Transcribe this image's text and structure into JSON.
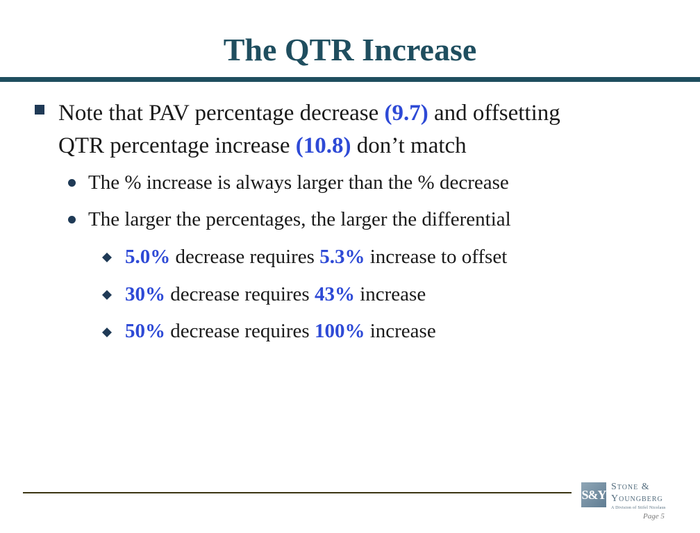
{
  "slide": {
    "title": "The QTR Increase"
  },
  "bullets": {
    "main": {
      "text_1": "Note that PAV percentage decrease ",
      "hl_1": "(9.7)",
      "text_2": " and offsetting",
      "text_3": "QTR percentage increase ",
      "hl_2": "(10.8)",
      "text_4": " don’t match"
    },
    "sub": [
      {
        "text": "The % increase is always larger than the % decrease"
      },
      {
        "text": "The larger the percentages, the larger the differential"
      }
    ],
    "examples": [
      {
        "dec": "5.0%",
        "mid": " decrease requires ",
        "inc": "5.3%",
        "tail": " increase to offset"
      },
      {
        "dec": "30%",
        "mid": " decrease requires ",
        "inc": "43%",
        "tail": " increase"
      },
      {
        "dec": "50%",
        "mid": " decrease requires ",
        "inc": "100%",
        "tail": " increase"
      }
    ]
  },
  "footer": {
    "logo_mark": "S&Y",
    "logo_line1": "Stone &",
    "logo_line2": "Youngberg",
    "logo_sub": "A Division of Stifel Nicolaus",
    "page": "Page 5"
  },
  "colors": {
    "title": "#1f4e5f",
    "highlight": "#2e4ad6",
    "bullet": "#1f3a56"
  }
}
